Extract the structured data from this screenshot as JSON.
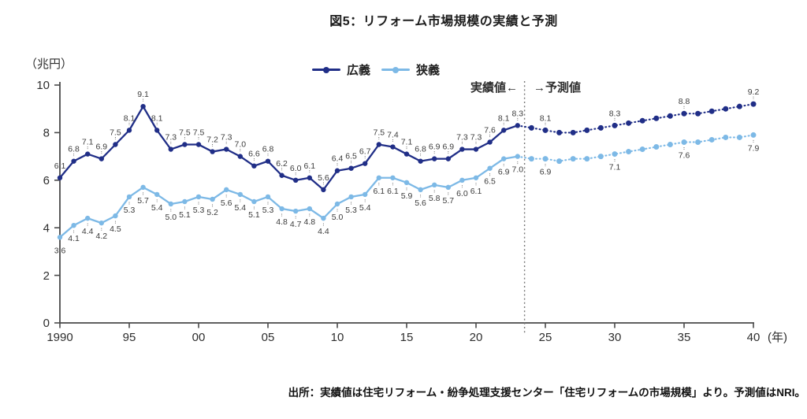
{
  "page": {
    "title": "図5：リフォーム市場規模の実績と予測",
    "source_note": "出所：実績値は住宅リフォーム・紛争処理支援センター「住宅リフォームの市場規模」より。予測値はNRI。"
  },
  "axes": {
    "y_unit_label": "（兆円）",
    "x_unit_label": "(年)"
  },
  "annotation": {
    "actual_label": "実績値←",
    "forecast_label": "→予測値"
  },
  "legend": {
    "items": [
      {
        "id": "kougi",
        "label": "広義",
        "color": "#202e87"
      },
      {
        "id": "kyougi",
        "label": "狭義",
        "color": "#7db9e6"
      }
    ]
  },
  "chart_data": {
    "type": "line",
    "title": "図5：リフォーム市場規模の実績と予測",
    "ylabel": "（兆円）",
    "xlabel": "(年)",
    "ylim": [
      0,
      10
    ],
    "y_ticks": [
      0,
      2,
      4,
      6,
      8,
      10
    ],
    "x_ticks": [
      {
        "year": 1990,
        "label": "1990"
      },
      {
        "year": 1995,
        "label": "95"
      },
      {
        "year": 2000,
        "label": "00"
      },
      {
        "year": 2005,
        "label": "05"
      },
      {
        "year": 2010,
        "label": "10"
      },
      {
        "year": 2015,
        "label": "15"
      },
      {
        "year": 2020,
        "label": "20"
      },
      {
        "year": 2025,
        "label": "25"
      },
      {
        "year": 2030,
        "label": "30"
      },
      {
        "year": 2035,
        "label": "35"
      },
      {
        "year": 2040,
        "label": "40"
      }
    ],
    "grid": false,
    "legend_position": "top-center",
    "separator_year": 2023.5,
    "series": [
      {
        "id": "kougi",
        "name": "広義",
        "color": "#202e87",
        "label_position": "above",
        "actual": {
          "start_year": 1990,
          "values": [
            6.1,
            6.8,
            7.1,
            6.9,
            7.5,
            8.1,
            9.1,
            8.1,
            7.3,
            7.5,
            7.5,
            7.2,
            7.3,
            7.0,
            6.6,
            6.8,
            6.2,
            6.0,
            6.1,
            5.6,
            6.4,
            6.5,
            6.7,
            7.5,
            7.4,
            7.1,
            6.8,
            6.9,
            6.9,
            7.3,
            7.3,
            7.6,
            8.1,
            8.3
          ]
        },
        "forecast": {
          "start_year": 2024,
          "values": [
            8.2,
            8.1,
            8.0,
            8.0,
            8.1,
            8.2,
            8.3,
            8.4,
            8.5,
            8.6,
            8.7,
            8.8,
            8.8,
            8.9,
            9.0,
            9.1,
            9.2
          ],
          "labeled_years": [
            2025,
            2030,
            2035,
            2040
          ]
        }
      },
      {
        "id": "kyougi",
        "name": "狭義",
        "color": "#7db9e6",
        "label_position": "below",
        "actual": {
          "start_year": 1990,
          "values": [
            3.6,
            4.1,
            4.4,
            4.2,
            4.5,
            5.3,
            5.7,
            5.4,
            5.0,
            5.1,
            5.3,
            5.2,
            5.6,
            5.4,
            5.1,
            5.3,
            4.8,
            4.7,
            4.8,
            4.4,
            5.0,
            5.3,
            5.4,
            6.1,
            6.1,
            5.9,
            5.6,
            5.8,
            5.7,
            6.0,
            6.1,
            6.5,
            6.9,
            7.0
          ]
        },
        "forecast": {
          "start_year": 2024,
          "values": [
            6.9,
            6.9,
            6.8,
            6.9,
            6.9,
            7.0,
            7.1,
            7.2,
            7.3,
            7.4,
            7.5,
            7.6,
            7.6,
            7.7,
            7.8,
            7.8,
            7.9
          ],
          "labeled_years": [
            2025,
            2030,
            2035,
            2040
          ]
        }
      }
    ]
  }
}
